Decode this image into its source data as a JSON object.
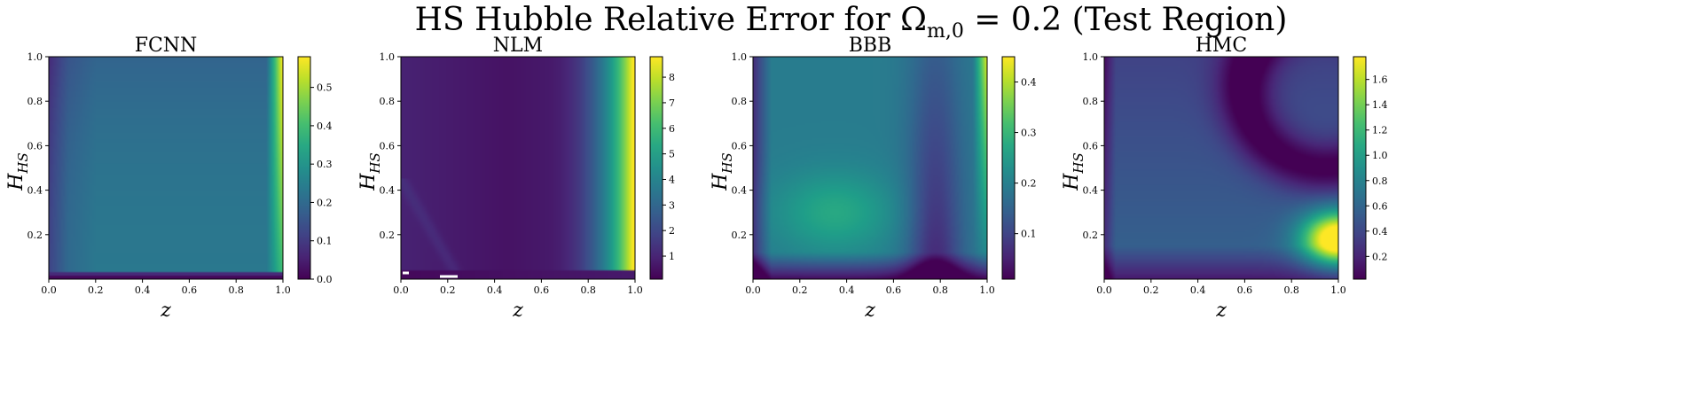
{
  "figure": {
    "title_prefix": "HS Hubble Relative Error for Ω",
    "title_sub": "m,0",
    "title_suffix": " = 0.2 (Test Region)"
  },
  "colormap": "viridis",
  "chart_data": [
    {
      "type": "heatmap",
      "title": "FCNN",
      "xlabel": "z",
      "ylabel": "H_HS",
      "xlim": [
        0,
        1
      ],
      "ylim": [
        0,
        1
      ],
      "xticks": [
        "0.0",
        "0.2",
        "0.4",
        "0.6",
        "0.8",
        "1.0"
      ],
      "yticks": [
        "0.2",
        "0.4",
        "0.6",
        "0.8",
        "1.0"
      ],
      "colorbar": {
        "min": 0.0,
        "max": 0.58,
        "ticks": [
          0.0,
          0.1,
          0.2,
          0.3,
          0.4,
          0.5
        ],
        "tick_labels": [
          "0.0",
          "0.1",
          "0.2",
          "0.3",
          "0.4",
          "0.5"
        ]
      }
    },
    {
      "type": "heatmap",
      "title": "NLM",
      "xlabel": "z",
      "ylabel": "H_HS",
      "xlim": [
        0,
        1
      ],
      "ylim": [
        0,
        1
      ],
      "xticks": [
        "0.0",
        "0.2",
        "0.4",
        "0.6",
        "0.8",
        "1.0"
      ],
      "yticks": [
        "0.2",
        "0.4",
        "0.6",
        "0.8",
        "1.0"
      ],
      "colorbar": {
        "min": 0.1,
        "max": 8.8,
        "ticks": [
          1,
          2,
          3,
          4,
          5,
          6,
          7,
          8
        ],
        "tick_labels": [
          "1",
          "2",
          "3",
          "4",
          "5",
          "6",
          "7",
          "8"
        ]
      }
    },
    {
      "type": "heatmap",
      "title": "BBB",
      "xlabel": "z",
      "ylabel": "H_HS",
      "xlim": [
        0,
        1
      ],
      "ylim": [
        0,
        1
      ],
      "xticks": [
        "0.0",
        "0.2",
        "0.4",
        "0.6",
        "0.8",
        "1.0"
      ],
      "yticks": [
        "0.2",
        "0.4",
        "0.6",
        "0.8",
        "1.0"
      ],
      "colorbar": {
        "min": 0.01,
        "max": 0.45,
        "ticks": [
          0.1,
          0.2,
          0.3,
          0.4
        ],
        "tick_labels": [
          "0.1",
          "0.2",
          "0.3",
          "0.4"
        ]
      }
    },
    {
      "type": "heatmap",
      "title": "HMC",
      "xlabel": "z",
      "ylabel": "H_HS",
      "xlim": [
        0,
        1
      ],
      "ylim": [
        0,
        1
      ],
      "xticks": [
        "0.0",
        "0.2",
        "0.4",
        "0.6",
        "0.8",
        "1.0"
      ],
      "yticks": [
        "0.2",
        "0.4",
        "0.6",
        "0.8",
        "1.0"
      ],
      "colorbar": {
        "min": 0.02,
        "max": 1.78,
        "ticks": [
          0.2,
          0.4,
          0.6,
          0.8,
          1.0,
          1.2,
          1.4,
          1.6
        ],
        "tick_labels": [
          "0.2",
          "0.4",
          "0.6",
          "0.8",
          "1.0",
          "1.2",
          "1.4",
          "1.6"
        ]
      }
    }
  ]
}
